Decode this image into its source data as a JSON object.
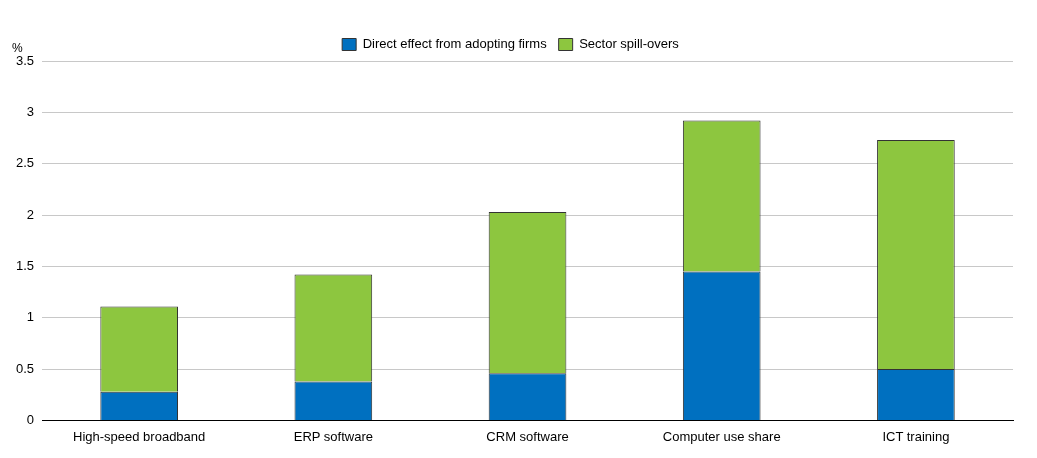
{
  "chart_data": {
    "type": "bar",
    "stacked": true,
    "ylabel": "%",
    "categories": [
      "High-speed broadband",
      "ERP software",
      "CRM software",
      "Computer use share",
      "ICT training"
    ],
    "series": [
      {
        "name": "Direct effect from adopting firms",
        "color": "#0070c0",
        "values": [
          0.28,
          0.38,
          0.46,
          1.45,
          0.5
        ]
      },
      {
        "name": "Sector spill-overs",
        "color": "#8dc63f",
        "values": [
          0.83,
          1.04,
          1.57,
          1.47,
          2.23
        ]
      }
    ],
    "ylim": [
      0,
      3.5
    ],
    "yticks": [
      0,
      0.5,
      1,
      1.5,
      2,
      2.5,
      3,
      3.5
    ],
    "grid": "y",
    "legend": "top"
  }
}
